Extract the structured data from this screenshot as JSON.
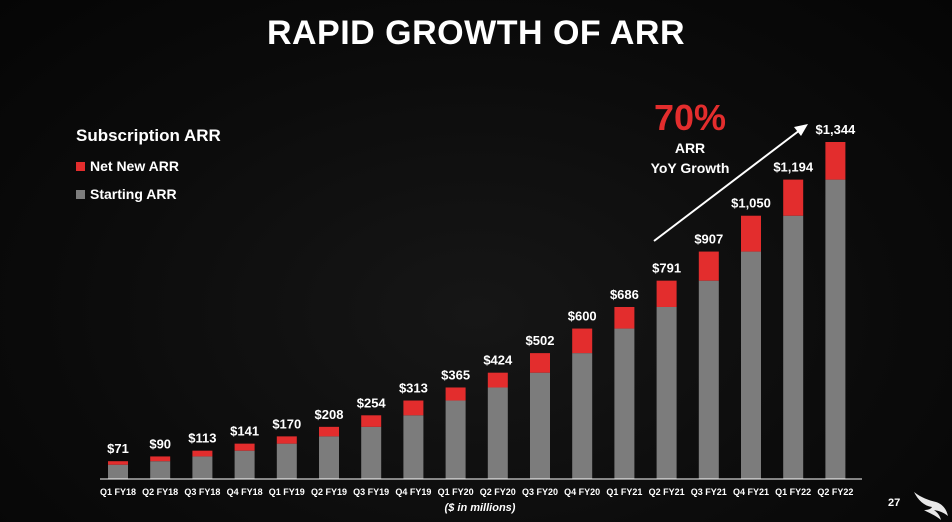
{
  "title": "RAPID GROWTH OF ARR",
  "legend": {
    "title": "Subscription ARR",
    "items": [
      {
        "label": "Net New ARR",
        "color": "#e32d2d"
      },
      {
        "label": "Starting ARR",
        "color": "#7c7c7c"
      }
    ]
  },
  "growth": {
    "pct": "70%",
    "line1": "ARR",
    "line2": "YoY Growth",
    "pct_color": "#e32d2d"
  },
  "unit_note": "($ in millions)",
  "page_number": "27",
  "chart_data": {
    "type": "bar",
    "stacked": true,
    "categories": [
      "Q1 FY18",
      "Q2 FY18",
      "Q3 FY18",
      "Q4 FY18",
      "Q1 FY19",
      "Q2 FY19",
      "Q3 FY19",
      "Q4 FY19",
      "Q1 FY20",
      "Q2 FY20",
      "Q3 FY20",
      "Q4 FY20",
      "Q1 FY21",
      "Q2 FY21",
      "Q3 FY21",
      "Q4 FY21",
      "Q1 FY22",
      "Q2 FY22"
    ],
    "series": [
      {
        "name": "Starting ARR",
        "color": "#7c7c7c",
        "values": [
          57,
          71,
          90,
          113,
          141,
          170,
          208,
          254,
          313,
          365,
          424,
          502,
          600,
          686,
          791,
          907,
          1050,
          1194
        ]
      },
      {
        "name": "Net New ARR",
        "color": "#e32d2d",
        "values": [
          14,
          19,
          23,
          28,
          29,
          38,
          46,
          59,
          52,
          59,
          78,
          98,
          86,
          105,
          116,
          143,
          144,
          150
        ]
      }
    ],
    "totals": [
      "$71",
      "$90",
      "$113",
      "$141",
      "$170",
      "$208",
      "$254",
      "$313",
      "$365",
      "$424",
      "$502",
      "$600",
      "$686",
      "$791",
      "$907",
      "$1,050",
      "$1,194",
      "$1,344"
    ],
    "total_values": [
      71,
      90,
      113,
      141,
      170,
      208,
      254,
      313,
      365,
      424,
      502,
      600,
      686,
      791,
      907,
      1050,
      1194,
      1344
    ],
    "ylim": [
      0,
      1400
    ],
    "xlabel": "($ in millions)",
    "grid": false,
    "legend_position": "top-left"
  }
}
